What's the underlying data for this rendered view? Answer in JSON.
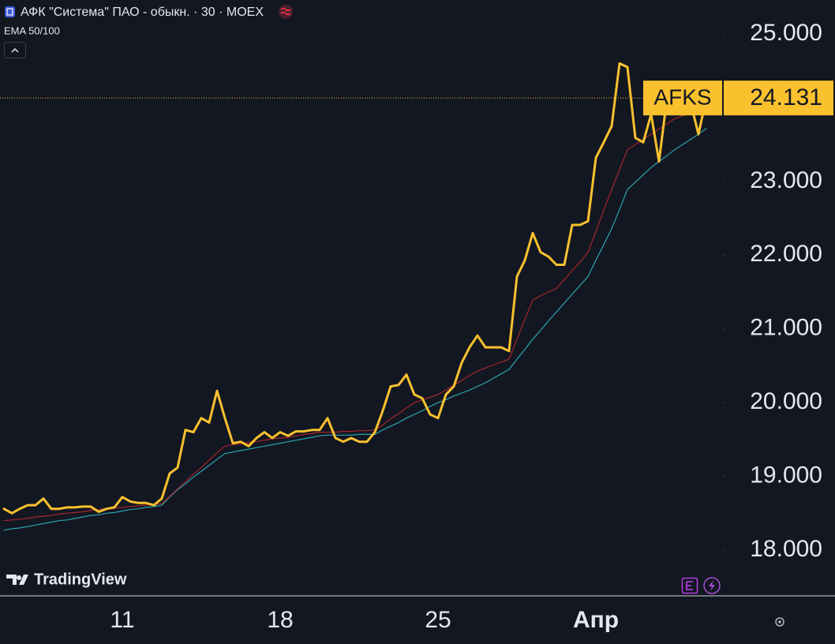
{
  "chart_data": {
    "type": "line",
    "title": "АФК \"Система\" ПАО - обыкн. · 30 · MOEX",
    "indicator": "EMA 50/100",
    "watermark": "TradingView",
    "symbol": "AFKS",
    "last_price": 24.131,
    "categories": [
      null,
      null,
      null,
      null,
      null,
      null,
      null,
      null,
      null,
      null,
      null,
      null,
      null,
      null,
      null,
      "11",
      null,
      null,
      null,
      null,
      null,
      null,
      null,
      null,
      null,
      null,
      null,
      null,
      null,
      null,
      null,
      null,
      null,
      null,
      null,
      "18",
      null,
      null,
      null,
      null,
      null,
      null,
      null,
      null,
      null,
      null,
      null,
      null,
      null,
      null,
      null,
      null,
      null,
      null,
      null,
      "25",
      null,
      null,
      null,
      null,
      null,
      null,
      null,
      null,
      null,
      null,
      null,
      null,
      null,
      null,
      null,
      null,
      null,
      null,
      null,
      "Апр",
      null,
      null,
      null,
      null,
      null,
      null,
      null,
      null,
      null,
      null,
      null,
      null,
      null,
      null
    ],
    "series": [
      {
        "name": "AFKS",
        "color": "#f9c12e",
        "values": [
          18.56,
          18.5,
          18.56,
          18.61,
          18.61,
          18.7,
          18.56,
          18.56,
          18.58,
          18.58,
          18.59,
          18.59,
          18.52,
          18.56,
          18.58,
          18.72,
          18.66,
          18.64,
          18.64,
          18.61,
          18.7,
          19.04,
          19.12,
          19.63,
          19.6,
          19.79,
          19.73,
          20.16,
          19.79,
          19.45,
          19.47,
          19.41,
          19.52,
          19.6,
          19.52,
          19.6,
          19.55,
          19.61,
          19.61,
          19.63,
          19.63,
          19.79,
          19.52,
          19.47,
          19.52,
          19.47,
          19.47,
          19.6,
          19.89,
          20.22,
          20.24,
          20.38,
          20.11,
          20.06,
          19.84,
          19.79,
          20.11,
          20.22,
          20.54,
          20.75,
          20.91,
          20.75,
          20.75,
          20.75,
          20.7,
          21.71,
          21.93,
          22.3,
          22.04,
          21.98,
          21.87,
          21.87,
          22.41,
          22.41,
          22.46,
          23.32,
          23.53,
          23.75,
          24.6,
          24.55,
          23.59,
          23.53,
          23.91,
          23.27,
          24.12,
          23.96,
          24.07,
          24.07,
          23.64,
          24.131
        ]
      },
      {
        "color": "#a3262c",
        "values": [
          18.4,
          18.41,
          18.42,
          18.43,
          18.45,
          18.46,
          18.47,
          18.49,
          18.5,
          18.51,
          18.52,
          18.54,
          18.55,
          18.56,
          18.57,
          18.58,
          18.59,
          18.6,
          18.61,
          18.62,
          18.63,
          18.73,
          18.83,
          18.93,
          19.03,
          19.12,
          19.22,
          19.32,
          19.41,
          19.43,
          19.44,
          19.46,
          19.47,
          19.49,
          19.51,
          19.52,
          19.53,
          19.55,
          19.57,
          19.58,
          19.6,
          19.6,
          19.6,
          19.61,
          19.61,
          19.62,
          19.62,
          19.63,
          19.7,
          19.78,
          19.85,
          19.93,
          20.0,
          20.04,
          20.07,
          20.11,
          20.17,
          20.24,
          20.3,
          20.37,
          20.43,
          20.47,
          20.51,
          20.55,
          20.59,
          20.86,
          21.13,
          21.39,
          21.45,
          21.5,
          21.55,
          21.67,
          21.79,
          21.91,
          22.04,
          22.32,
          22.61,
          22.89,
          23.16,
          23.43,
          23.5,
          23.57,
          23.64,
          23.71,
          23.78,
          23.85,
          23.89,
          23.92,
          23.95,
          23.98
        ]
      },
      {
        "color": "#2aa3ad",
        "values": [
          18.27,
          18.29,
          18.3,
          18.32,
          18.34,
          18.36,
          18.38,
          18.4,
          18.41,
          18.43,
          18.45,
          18.47,
          18.48,
          18.5,
          18.51,
          18.53,
          18.55,
          18.56,
          18.58,
          18.59,
          18.61,
          18.72,
          18.82,
          18.9,
          18.99,
          19.07,
          19.15,
          19.23,
          19.31,
          19.33,
          19.35,
          19.37,
          19.39,
          19.41,
          19.43,
          19.45,
          19.47,
          19.49,
          19.51,
          19.53,
          19.55,
          19.56,
          19.56,
          19.56,
          19.56,
          19.57,
          19.57,
          19.57,
          19.63,
          19.68,
          19.73,
          19.79,
          19.84,
          19.89,
          19.95,
          20.0,
          20.04,
          20.09,
          20.13,
          20.17,
          20.22,
          20.27,
          20.33,
          20.39,
          20.45,
          20.59,
          20.72,
          20.86,
          20.98,
          21.11,
          21.23,
          21.35,
          21.47,
          21.59,
          21.71,
          21.93,
          22.14,
          22.36,
          22.62,
          22.89,
          22.99,
          23.09,
          23.19,
          23.27,
          23.35,
          23.43,
          23.5,
          23.57,
          23.64,
          23.72
        ]
      }
    ],
    "ylim": [
      17.38,
      25.46
    ],
    "yticks": [
      {
        "value": 18,
        "label": "18.000"
      },
      {
        "value": 19,
        "label": "19.000"
      },
      {
        "value": 20,
        "label": "20.000"
      },
      {
        "value": 21,
        "label": "21.000"
      },
      {
        "value": 22,
        "label": "22.000"
      },
      {
        "value": 23,
        "label": "23.000"
      },
      {
        "value": 24,
        "label": "24.000"
      },
      {
        "value": 25,
        "label": "25.000"
      }
    ],
    "grid": false
  }
}
